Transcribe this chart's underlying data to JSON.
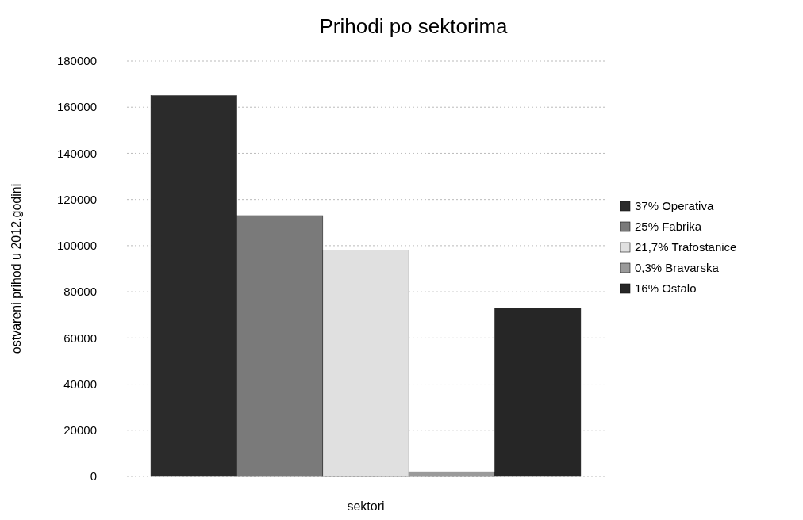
{
  "chart_data": {
    "type": "bar",
    "title": "Prihodi po sektorima",
    "xlabel": "sektori",
    "ylabel": "ostvareni prihod u 2012.godini",
    "categories": [
      null
    ],
    "series": [
      {
        "name": "37% Operativa",
        "color": "#2b2b2b",
        "values": [
          165000
        ]
      },
      {
        "name": "25% Fabrika",
        "color": "#7a7a7a",
        "values": [
          113000
        ]
      },
      {
        "name": "21,7% Trafostanice",
        "color": "#e0e0e0",
        "values": [
          98000
        ]
      },
      {
        "name": "0,3% Bravarska",
        "color": "#9a9a9a",
        "values": [
          2000
        ]
      },
      {
        "name": "16% Ostalo",
        "color": "#262626",
        "values": [
          73000
        ]
      }
    ],
    "ylim": [
      0,
      180000
    ],
    "yticks": [
      0,
      20000,
      40000,
      60000,
      80000,
      100000,
      120000,
      140000,
      160000,
      180000
    ],
    "grid": "y",
    "legend": "right"
  }
}
